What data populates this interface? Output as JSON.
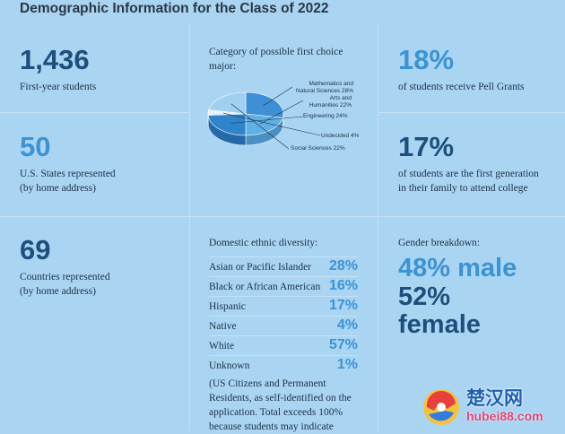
{
  "title": "Demographic Information for the Class of 2022",
  "stats": {
    "first_year": {
      "value": "1,436",
      "label": "First-year students"
    },
    "states": {
      "value": "50",
      "label_line1": "U.S. States represented",
      "label_line2": "(by home address)"
    },
    "countries": {
      "value": "69",
      "label_line1": "Countries represented",
      "label_line2": "(by home address)"
    },
    "pell": {
      "value": "18%",
      "label": "of students receive Pell Grants"
    },
    "first_gen": {
      "value": "17%",
      "label_line1": "of students are the first generation",
      "label_line2": "in their family to attend college"
    }
  },
  "major_chart": {
    "title_line1": "Category of possible first choice",
    "title_line2": "major:"
  },
  "chart_data": {
    "type": "pie",
    "title": "Category of possible first choice major:",
    "slices": [
      {
        "label_line1": "Mathematics and",
        "label_line2": "Natural Sciences 28%",
        "value": 28
      },
      {
        "label_line1": "Arts and",
        "label_line2": "Humanities 22%",
        "value": 22
      },
      {
        "label_line1": "Engineering 24%",
        "value": 24
      },
      {
        "label_line1": "Undecided 4%",
        "value": 4
      },
      {
        "label_line1": "Social Sciences 22%",
        "value": 22
      }
    ]
  },
  "ethnic": {
    "title": "Domestic ethnic diversity:",
    "rows": [
      {
        "label": "Asian or Pacific Islander",
        "pct": "28%"
      },
      {
        "label": "Black or African American",
        "pct": "16%"
      },
      {
        "label": "Hispanic",
        "pct": "17%"
      },
      {
        "label": "Native",
        "pct": "4%"
      },
      {
        "label": "White",
        "pct": "57%"
      },
      {
        "label": "Unknown",
        "pct": "1%"
      }
    ],
    "note_line1": "(US Citizens and Permanent",
    "note_line2": "Residents, as self-identified on the",
    "note_line3": "application. Total exceeds 100%",
    "note_line4": "because students may indicate"
  },
  "gender": {
    "title": "Gender breakdown:",
    "male": "48% male",
    "female_pct": "52%",
    "female_word": "female"
  },
  "watermark": {
    "chinese": "楚汉网",
    "url": "hubei88.com"
  }
}
